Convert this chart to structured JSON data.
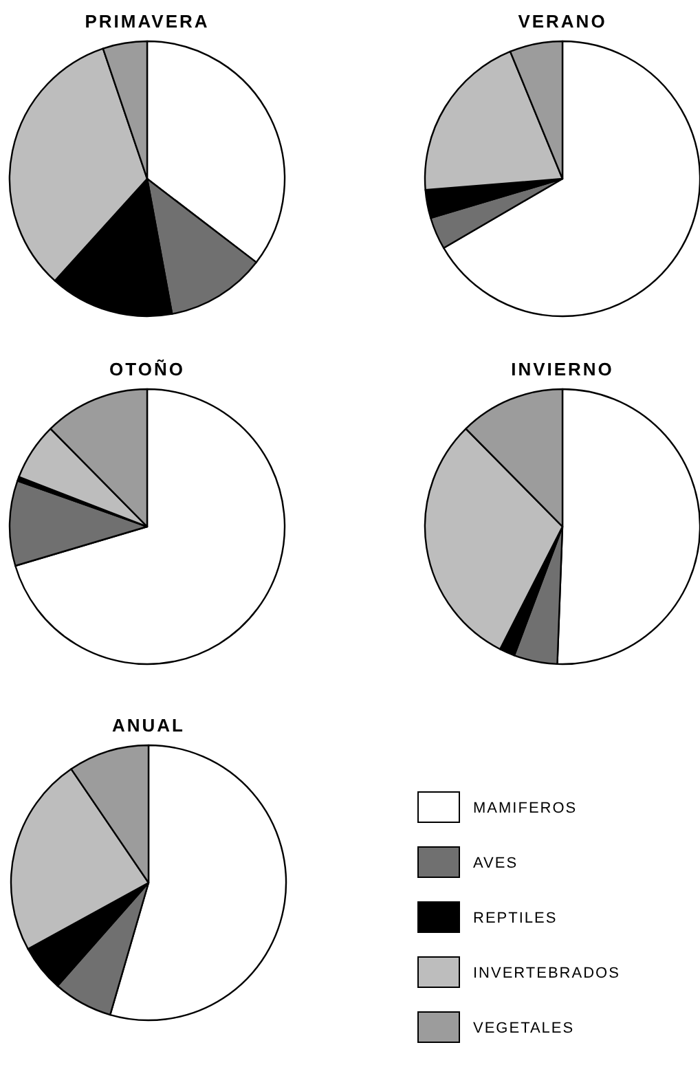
{
  "chart_data": [
    {
      "type": "pie",
      "title": "PRIMAVERA",
      "categories": [
        null,
        null,
        null,
        null,
        null
      ],
      "values": [
        35.4,
        11.7,
        14.6,
        33.1,
        5.2
      ],
      "colors": [
        "#ffffff",
        "#707070",
        "#000000",
        "#bdbdbd",
        "#9c9c9c"
      ],
      "legend": false
    },
    {
      "type": "pie",
      "title": "VERANO",
      "categories": [
        null,
        null,
        null,
        null,
        null
      ],
      "values": [
        66.6,
        3.8,
        3.3,
        20.1,
        6.2
      ],
      "colors": [
        "#ffffff",
        "#707070",
        "#000000",
        "#bdbdbd",
        "#9c9c9c"
      ],
      "legend": false
    },
    {
      "type": "pie",
      "title": "OTOÑO",
      "categories": [
        null,
        null,
        null,
        null,
        null
      ],
      "values": [
        70.4,
        10,
        0.5,
        6.7,
        12.4
      ],
      "colors": [
        "#ffffff",
        "#707070",
        "#000000",
        "#bdbdbd",
        "#9c9c9c"
      ],
      "legend": false
    },
    {
      "type": "pie",
      "title": "INVIERNO",
      "categories": [
        null,
        null,
        null,
        null,
        null
      ],
      "values": [
        50.6,
        5.1,
        1.8,
        30.1,
        12.4
      ],
      "colors": [
        "#ffffff",
        "#707070",
        "#000000",
        "#bdbdbd",
        "#9c9c9c"
      ],
      "legend": false
    },
    {
      "type": "pie",
      "title": "ANUAL",
      "categories": [
        "MAMIFEROS",
        "AVES",
        "REPTILES",
        "INVERTEBRADOS",
        "VEGETALES"
      ],
      "values": [
        54.5,
        7,
        5.5,
        23.5,
        9.5
      ],
      "colors": [
        "#ffffff",
        "#707070",
        "#000000",
        "#bdbdbd",
        "#9c9c9c"
      ],
      "legend": "right"
    }
  ]
}
